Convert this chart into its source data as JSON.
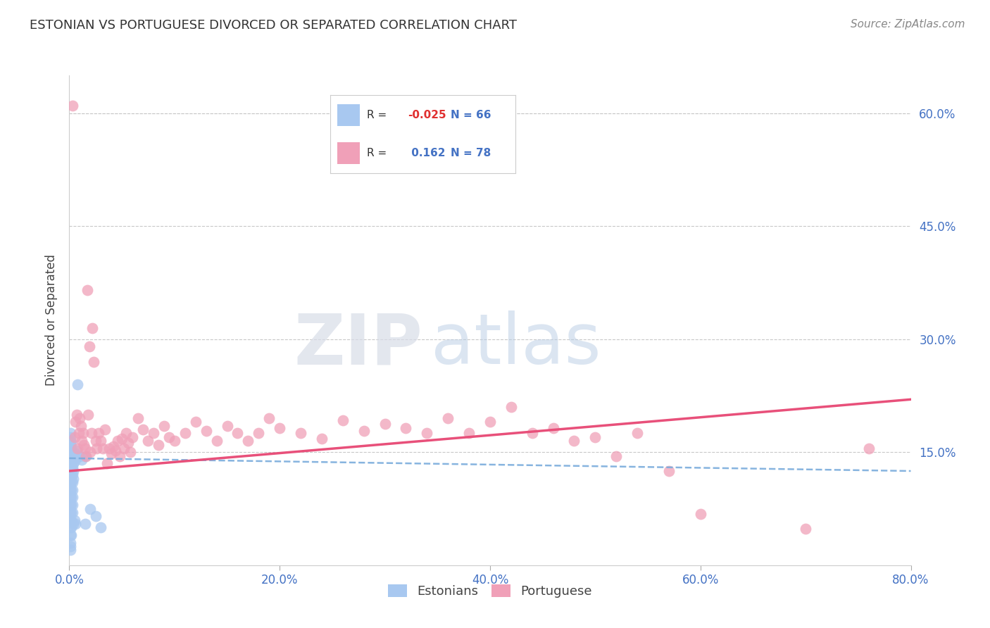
{
  "title": "ESTONIAN VS PORTUGUESE DIVORCED OR SEPARATED CORRELATION CHART",
  "source": "Source: ZipAtlas.com",
  "ylabel": "Divorced or Separated",
  "legend_estonian": {
    "R": -0.025,
    "N": 66
  },
  "legend_portuguese": {
    "R": 0.162,
    "N": 78
  },
  "xlim": [
    0.0,
    0.8
  ],
  "ylim": [
    0.0,
    0.65
  ],
  "yticks": [
    0.15,
    0.3,
    0.45,
    0.6
  ],
  "xticks": [
    0.0,
    0.2,
    0.4,
    0.6,
    0.8
  ],
  "ytick_labels": [
    "15.0%",
    "30.0%",
    "45.0%",
    "60.0%"
  ],
  "xtick_labels": [
    "0.0%",
    "20.0%",
    "40.0%",
    "60.0%",
    "80.0%"
  ],
  "background_color": "#ffffff",
  "grid_color": "#c8c8c8",
  "watermark_zip": "ZIP",
  "watermark_atlas": "atlas",
  "estonian_color": "#a8c8f0",
  "portuguese_color": "#f0a0b8",
  "estonian_edge_color": "#6090c0",
  "portuguese_edge_color": "#d06080",
  "estonian_line_color": "#7aacdc",
  "portuguese_line_color": "#e8507a",
  "estonian_points": [
    [
      0.001,
      0.13
    ],
    [
      0.001,
      0.145
    ],
    [
      0.001,
      0.15
    ],
    [
      0.001,
      0.155
    ],
    [
      0.001,
      0.16
    ],
    [
      0.001,
      0.165
    ],
    [
      0.001,
      0.17
    ],
    [
      0.001,
      0.175
    ],
    [
      0.001,
      0.125
    ],
    [
      0.001,
      0.135
    ],
    [
      0.001,
      0.14
    ],
    [
      0.001,
      0.115
    ],
    [
      0.001,
      0.12
    ],
    [
      0.001,
      0.108
    ],
    [
      0.001,
      0.1
    ],
    [
      0.001,
      0.09
    ],
    [
      0.001,
      0.08
    ],
    [
      0.001,
      0.07
    ],
    [
      0.001,
      0.06
    ],
    [
      0.001,
      0.05
    ],
    [
      0.001,
      0.04
    ],
    [
      0.001,
      0.03
    ],
    [
      0.001,
      0.025
    ],
    [
      0.001,
      0.02
    ],
    [
      0.002,
      0.145
    ],
    [
      0.002,
      0.155
    ],
    [
      0.002,
      0.162
    ],
    [
      0.002,
      0.135
    ],
    [
      0.002,
      0.125
    ],
    [
      0.002,
      0.118
    ],
    [
      0.002,
      0.11
    ],
    [
      0.002,
      0.1
    ],
    [
      0.002,
      0.09
    ],
    [
      0.002,
      0.08
    ],
    [
      0.002,
      0.07
    ],
    [
      0.002,
      0.06
    ],
    [
      0.002,
      0.05
    ],
    [
      0.002,
      0.04
    ],
    [
      0.003,
      0.148
    ],
    [
      0.003,
      0.14
    ],
    [
      0.003,
      0.13
    ],
    [
      0.003,
      0.12
    ],
    [
      0.003,
      0.11
    ],
    [
      0.003,
      0.1
    ],
    [
      0.003,
      0.09
    ],
    [
      0.003,
      0.08
    ],
    [
      0.003,
      0.07
    ],
    [
      0.004,
      0.145
    ],
    [
      0.004,
      0.135
    ],
    [
      0.004,
      0.125
    ],
    [
      0.004,
      0.115
    ],
    [
      0.004,
      0.055
    ],
    [
      0.005,
      0.148
    ],
    [
      0.005,
      0.138
    ],
    [
      0.005,
      0.06
    ],
    [
      0.006,
      0.142
    ],
    [
      0.006,
      0.055
    ],
    [
      0.007,
      0.152
    ],
    [
      0.008,
      0.24
    ],
    [
      0.01,
      0.145
    ],
    [
      0.012,
      0.14
    ],
    [
      0.015,
      0.145
    ],
    [
      0.02,
      0.075
    ],
    [
      0.025,
      0.065
    ],
    [
      0.015,
      0.055
    ],
    [
      0.03,
      0.05
    ]
  ],
  "portuguese_points": [
    [
      0.003,
      0.61
    ],
    [
      0.005,
      0.17
    ],
    [
      0.006,
      0.19
    ],
    [
      0.007,
      0.2
    ],
    [
      0.008,
      0.155
    ],
    [
      0.009,
      0.175
    ],
    [
      0.01,
      0.195
    ],
    [
      0.011,
      0.185
    ],
    [
      0.012,
      0.165
    ],
    [
      0.013,
      0.175
    ],
    [
      0.014,
      0.16
    ],
    [
      0.015,
      0.155
    ],
    [
      0.016,
      0.145
    ],
    [
      0.017,
      0.365
    ],
    [
      0.018,
      0.2
    ],
    [
      0.019,
      0.29
    ],
    [
      0.02,
      0.15
    ],
    [
      0.021,
      0.175
    ],
    [
      0.022,
      0.315
    ],
    [
      0.023,
      0.27
    ],
    [
      0.025,
      0.165
    ],
    [
      0.026,
      0.155
    ],
    [
      0.028,
      0.175
    ],
    [
      0.03,
      0.165
    ],
    [
      0.032,
      0.155
    ],
    [
      0.034,
      0.18
    ],
    [
      0.036,
      0.135
    ],
    [
      0.038,
      0.155
    ],
    [
      0.04,
      0.148
    ],
    [
      0.042,
      0.158
    ],
    [
      0.044,
      0.152
    ],
    [
      0.046,
      0.165
    ],
    [
      0.048,
      0.145
    ],
    [
      0.05,
      0.168
    ],
    [
      0.052,
      0.155
    ],
    [
      0.054,
      0.175
    ],
    [
      0.056,
      0.162
    ],
    [
      0.058,
      0.15
    ],
    [
      0.06,
      0.17
    ],
    [
      0.065,
      0.195
    ],
    [
      0.07,
      0.18
    ],
    [
      0.075,
      0.165
    ],
    [
      0.08,
      0.175
    ],
    [
      0.085,
      0.16
    ],
    [
      0.09,
      0.185
    ],
    [
      0.095,
      0.17
    ],
    [
      0.1,
      0.165
    ],
    [
      0.11,
      0.175
    ],
    [
      0.12,
      0.19
    ],
    [
      0.13,
      0.178
    ],
    [
      0.14,
      0.165
    ],
    [
      0.15,
      0.185
    ],
    [
      0.16,
      0.175
    ],
    [
      0.17,
      0.165
    ],
    [
      0.18,
      0.175
    ],
    [
      0.19,
      0.195
    ],
    [
      0.2,
      0.182
    ],
    [
      0.22,
      0.175
    ],
    [
      0.24,
      0.168
    ],
    [
      0.26,
      0.192
    ],
    [
      0.28,
      0.178
    ],
    [
      0.3,
      0.188
    ],
    [
      0.32,
      0.182
    ],
    [
      0.34,
      0.175
    ],
    [
      0.36,
      0.195
    ],
    [
      0.38,
      0.175
    ],
    [
      0.4,
      0.19
    ],
    [
      0.42,
      0.21
    ],
    [
      0.44,
      0.175
    ],
    [
      0.46,
      0.182
    ],
    [
      0.48,
      0.165
    ],
    [
      0.5,
      0.17
    ],
    [
      0.52,
      0.145
    ],
    [
      0.54,
      0.175
    ],
    [
      0.57,
      0.125
    ],
    [
      0.6,
      0.068
    ],
    [
      0.7,
      0.048
    ],
    [
      0.76,
      0.155
    ]
  ]
}
